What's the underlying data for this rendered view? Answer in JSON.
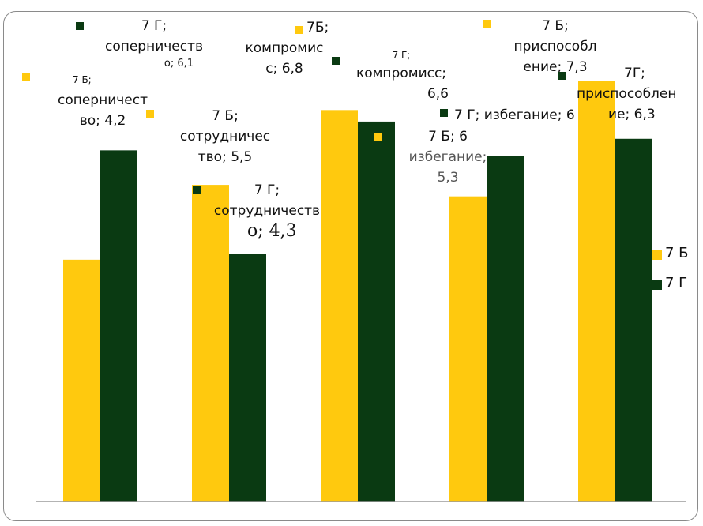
{
  "colors": {
    "b": "#FFC90E",
    "g": "#0A3A12",
    "axis": "#9a9a9a"
  },
  "chart_data": {
    "type": "bar",
    "categories": [
      "соперничество",
      "сотрудничество",
      "компромисс",
      "избегание",
      "приспособление"
    ],
    "series": [
      {
        "name": "7 Б",
        "values": [
          4.2,
          5.5,
          6.8,
          5.3,
          7.3
        ]
      },
      {
        "name": "7 Г",
        "values": [
          6.1,
          4.3,
          6.6,
          6.0,
          6.3
        ]
      }
    ],
    "ylim": [
      0,
      8.3
    ],
    "legend": "right",
    "grid": false
  },
  "legend": {
    "b": "7 Б",
    "g": "7 Г"
  },
  "labels": {
    "g1_l1": "7 Г;",
    "g1_l2": "соперничеств",
    "g1_l3": "о; 6,1",
    "b1_l1": "7 Б;",
    "b1_l2": "соперничест",
    "b1_l3": "во; 4,2",
    "b2_l1": "7 Б;",
    "b2_l2": "сотрудничес",
    "b2_l3": "тво; 5,5",
    "g2_l1": "7 Г;",
    "g2_l2": "сотрудничеств",
    "g2_l3": "о; 4,3",
    "b3_l1": "7Б;",
    "b3_l2": "компромис",
    "b3_l3": "с; 6,8",
    "g3_l1": "7 Г;",
    "g3_l2": "компромисс;",
    "g3_l3": "6,6",
    "g4_l1": "7 Г; избегание; 6",
    "b4_l1": "7 Б; 6",
    "b4_l2": "избегание;",
    "b4_l3": "5,3",
    "b5_l1": "7 Б;",
    "b5_l2": "приспособл",
    "b5_l3": "ение; 7,3",
    "g5_l1": "7Г;",
    "g5_l2": "приспособлен",
    "g5_l3": "ие; 6,3"
  }
}
